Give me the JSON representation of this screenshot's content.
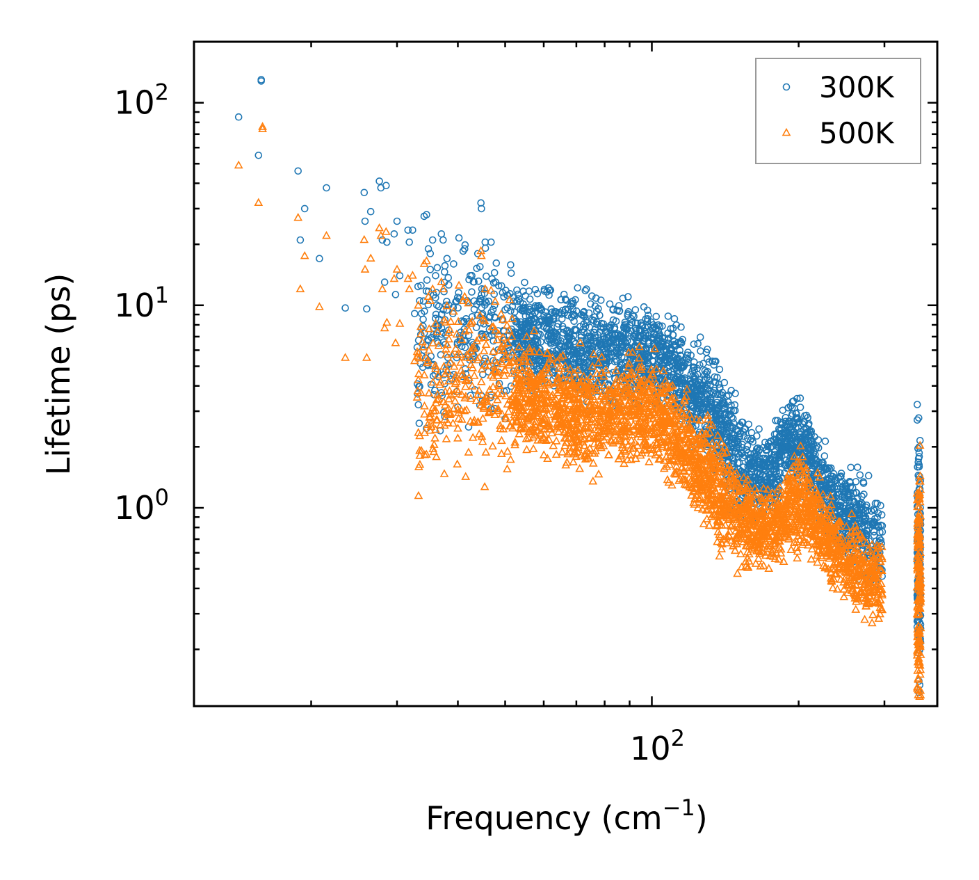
{
  "chart_data": {
    "type": "scatter",
    "title": "",
    "xlabel": "Frequency (cm",
    "xlabel_sup": "−1",
    "xlabel_end": ")",
    "ylabel": "Lifetime (ps)",
    "x_scale": "log",
    "y_scale": "log",
    "xlim": [
      11.5,
      385
    ],
    "ylim": [
      0.105,
      200
    ],
    "x_ticks": [
      {
        "base": "10",
        "exp": "2",
        "value": 100
      }
    ],
    "y_ticks": [
      {
        "base": "10",
        "exp": "0",
        "value": 1
      },
      {
        "base": "10",
        "exp": "1",
        "value": 10
      },
      {
        "base": "10",
        "exp": "2",
        "value": 100
      }
    ],
    "grid": false,
    "legend_position": "top-right",
    "series": [
      {
        "name": "300K",
        "marker": "circle",
        "color": "#1f77b4",
        "points": [
          [
            15.8,
            130
          ],
          [
            15.8,
            128
          ],
          [
            14.2,
            85
          ],
          [
            15.6,
            55
          ],
          [
            18.8,
            46
          ],
          [
            19.0,
            21
          ],
          [
            19.4,
            30
          ],
          [
            21.5,
            38
          ],
          [
            20.8,
            17
          ],
          [
            23.5,
            9.7
          ],
          [
            26.0,
            9.6
          ],
          [
            25.7,
            36
          ],
          [
            25.8,
            26
          ],
          [
            26.5,
            29
          ],
          [
            27.6,
            41
          ],
          [
            27.8,
            38
          ],
          [
            28.5,
            39
          ],
          [
            28.0,
            21
          ],
          [
            28.3,
            13
          ],
          [
            28.6,
            20.5
          ],
          [
            29.6,
            22.5
          ],
          [
            30.0,
            26
          ],
          [
            30.4,
            14
          ],
          [
            29.8,
            11.3
          ],
          [
            31.6,
            23.5
          ],
          [
            31.8,
            20.5
          ],
          [
            32.3,
            23.5
          ],
          [
            32.6,
            9.1
          ],
          [
            33.6,
            12.5
          ],
          [
            33.0,
            6.2
          ],
          [
            34.1,
            27.5
          ],
          [
            34.5,
            28
          ],
          [
            34.0,
            10.5
          ],
          [
            34.8,
            19
          ],
          [
            35.1,
            18
          ],
          [
            35.5,
            21
          ],
          [
            36.0,
            14
          ],
          [
            36.3,
            4.7
          ],
          [
            35.9,
            3.8
          ],
          [
            37.0,
            22.5
          ],
          [
            37.3,
            21
          ],
          [
            37.8,
            10
          ],
          [
            38.0,
            17
          ],
          [
            38.3,
            12.6
          ],
          [
            39.2,
            16
          ],
          [
            39.6,
            10.4
          ],
          [
            40.2,
            21.5
          ],
          [
            41.0,
            18.5
          ],
          [
            41.3,
            19
          ],
          [
            42.4,
            14
          ],
          [
            43.2,
            10.5
          ],
          [
            44.6,
            32
          ],
          [
            44.7,
            30
          ],
          [
            44.4,
            15.5
          ],
          [
            45.5,
            20.5
          ],
          [
            46.8,
            20.5
          ],
          [
            45.3,
            12
          ],
          [
            46.4,
            8.7
          ],
          [
            47.0,
            13.5
          ],
          [
            47.8,
            13
          ],
          [
            48.5,
            12.5
          ],
          [
            49.7,
            11
          ],
          [
            50.6,
            11.2
          ],
          [
            50.0,
            9.5
          ]
        ],
        "bands": [
          {
            "from": 33,
            "to": 52,
            "center": [
              6.2,
              6.5,
              6.8,
              7.2,
              7.5,
              7.3,
              7.0
            ],
            "spread": 0.55,
            "count": 260
          },
          {
            "from": 52,
            "to": 100,
            "center": [
              7.5,
              6.7,
              6.4,
              6.0,
              5.8,
              5.9,
              5.6
            ],
            "spread": 0.35,
            "count": 900
          },
          {
            "from": 100,
            "to": 125,
            "center": [
              5.8,
              5.3,
              4.7,
              4.0,
              3.5
            ],
            "spread": 0.32,
            "count": 340
          },
          {
            "from": 125,
            "to": 158,
            "center": [
              3.5,
              3.0,
              2.4,
              1.8,
              1.5
            ],
            "spread": 0.38,
            "count": 380
          },
          {
            "from": 158,
            "to": 182,
            "center": [
              1.45,
              1.4,
              1.45,
              1.65
            ],
            "spread": 0.28,
            "count": 220
          },
          {
            "from": 182,
            "to": 235,
            "center": [
              1.8,
              2.2,
              2.1,
              1.7,
              1.3,
              1.05
            ],
            "spread": 0.3,
            "count": 420
          },
          {
            "from": 235,
            "to": 297,
            "center": [
              1.0,
              0.9,
              0.85,
              0.75,
              0.65
            ],
            "spread": 0.32,
            "count": 320
          },
          {
            "from": 350,
            "to": 356,
            "center": [
              0.6,
              0.6
            ],
            "spread": 0.85,
            "count": 160
          }
        ]
      },
      {
        "name": "500K",
        "marker": "triangle",
        "color": "#ff7f0e",
        "points": [
          [
            15.9,
            76
          ],
          [
            15.9,
            74
          ],
          [
            14.2,
            49
          ],
          [
            15.6,
            32
          ],
          [
            18.8,
            27
          ],
          [
            19.0,
            12
          ],
          [
            19.4,
            17.5
          ],
          [
            21.5,
            22
          ],
          [
            20.8,
            9.8
          ],
          [
            23.5,
            5.5
          ],
          [
            26.0,
            5.5
          ],
          [
            25.7,
            21
          ],
          [
            25.8,
            15
          ],
          [
            26.5,
            17
          ],
          [
            27.6,
            24
          ],
          [
            27.8,
            22
          ],
          [
            28.5,
            23
          ],
          [
            28.0,
            12
          ],
          [
            28.3,
            7.7
          ],
          [
            28.6,
            8.2
          ],
          [
            29.6,
            13.5
          ],
          [
            30.0,
            15
          ],
          [
            30.4,
            8.1
          ],
          [
            29.8,
            6.5
          ],
          [
            31.6,
            13.5
          ],
          [
            31.8,
            12
          ],
          [
            32.3,
            14
          ],
          [
            32.6,
            5.3
          ],
          [
            33.6,
            7.2
          ],
          [
            33.0,
            3.5
          ],
          [
            34.1,
            16
          ],
          [
            34.5,
            16.5
          ],
          [
            34.0,
            6.2
          ],
          [
            34.8,
            11
          ],
          [
            35.1,
            10.5
          ],
          [
            35.5,
            12
          ],
          [
            36.0,
            8.1
          ],
          [
            36.3,
            2.7
          ],
          [
            35.9,
            2.2
          ],
          [
            37.0,
            13
          ],
          [
            37.3,
            12
          ],
          [
            37.8,
            5.7
          ],
          [
            38.0,
            9.9
          ],
          [
            38.3,
            7.3
          ],
          [
            39.2,
            9.3
          ],
          [
            39.6,
            6.1
          ],
          [
            40.2,
            12.5
          ],
          [
            41.0,
            10.5
          ],
          [
            41.3,
            11
          ],
          [
            42.4,
            8.1
          ],
          [
            43.2,
            6.1
          ],
          [
            44.6,
            18.5
          ],
          [
            44.7,
            17.5
          ],
          [
            44.4,
            8.9
          ],
          [
            45.5,
            12
          ],
          [
            46.8,
            11.8
          ],
          [
            45.3,
            6.9
          ],
          [
            46.4,
            5
          ],
          [
            47.0,
            7.8
          ],
          [
            47.8,
            7.5
          ],
          [
            48.5,
            7.2
          ],
          [
            49.7,
            6.4
          ],
          [
            50.6,
            6.5
          ],
          [
            50.0,
            5.5
          ]
        ],
        "bands": [
          {
            "from": 33,
            "to": 52,
            "center": [
              3.3,
              3.5,
              3.8,
              4.0,
              4.2,
              4.0,
              3.8
            ],
            "spread": 0.55,
            "count": 260
          },
          {
            "from": 52,
            "to": 100,
            "center": [
              3.8,
              3.3,
              3.1,
              2.9,
              2.9,
              3.0,
              3.0
            ],
            "spread": 0.36,
            "count": 900
          },
          {
            "from": 100,
            "to": 125,
            "center": [
              3.1,
              2.7,
              2.3,
              1.9,
              1.6
            ],
            "spread": 0.34,
            "count": 340
          },
          {
            "from": 125,
            "to": 158,
            "center": [
              1.6,
              1.35,
              1.1,
              0.9,
              0.8
            ],
            "spread": 0.35,
            "count": 380
          },
          {
            "from": 158,
            "to": 182,
            "center": [
              0.82,
              0.78,
              0.8,
              0.88
            ],
            "spread": 0.26,
            "count": 220
          },
          {
            "from": 182,
            "to": 235,
            "center": [
              0.85,
              1.0,
              1.1,
              0.95,
              0.8,
              0.65
            ],
            "spread": 0.3,
            "count": 420
          },
          {
            "from": 235,
            "to": 297,
            "center": [
              0.62,
              0.55,
              0.5,
              0.45,
              0.42
            ],
            "spread": 0.28,
            "count": 320
          },
          {
            "from": 350,
            "to": 356,
            "center": [
              0.4,
              0.4
            ],
            "spread": 0.85,
            "count": 160
          }
        ]
      }
    ]
  }
}
